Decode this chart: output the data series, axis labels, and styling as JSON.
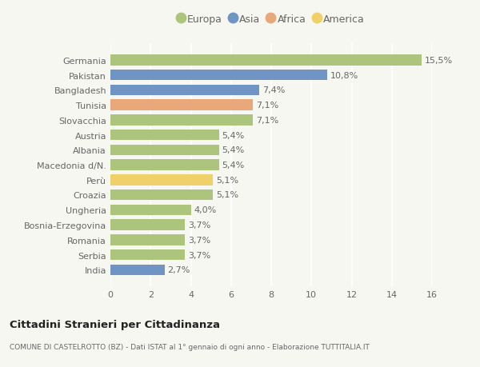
{
  "categories": [
    "Germania",
    "Pakistan",
    "Bangladesh",
    "Tunisia",
    "Slovacchia",
    "Austria",
    "Albania",
    "Macedonia d/N.",
    "Perù",
    "Croazia",
    "Ungheria",
    "Bosnia-Erzegovina",
    "Romania",
    "Serbia",
    "India"
  ],
  "values": [
    15.5,
    10.8,
    7.4,
    7.1,
    7.1,
    5.4,
    5.4,
    5.4,
    5.1,
    5.1,
    4.0,
    3.7,
    3.7,
    3.7,
    2.7
  ],
  "labels": [
    "15,5%",
    "10,8%",
    "7,4%",
    "7,1%",
    "7,1%",
    "5,4%",
    "5,4%",
    "5,4%",
    "5,1%",
    "5,1%",
    "4,0%",
    "3,7%",
    "3,7%",
    "3,7%",
    "2,7%"
  ],
  "continents": [
    "Europa",
    "Asia",
    "Asia",
    "Africa",
    "Europa",
    "Europa",
    "Europa",
    "Europa",
    "America",
    "Europa",
    "Europa",
    "Europa",
    "Europa",
    "Europa",
    "Asia"
  ],
  "colors": {
    "Europa": "#adc47d",
    "Asia": "#7094c4",
    "Africa": "#e8a87a",
    "America": "#f0d068"
  },
  "legend_order": [
    "Europa",
    "Asia",
    "Africa",
    "America"
  ],
  "background_color": "#f7f7f2",
  "xlim": [
    0,
    16
  ],
  "xticks": [
    0,
    2,
    4,
    6,
    8,
    10,
    12,
    14,
    16
  ],
  "title": "Cittadini Stranieri per Cittadinanza",
  "subtitle": "COMUNE DI CASTELROTTO (BZ) - Dati ISTAT al 1° gennaio di ogni anno - Elaborazione TUTTITALIA.IT",
  "grid_color": "#ffffff",
  "label_fontsize": 8.0,
  "tick_fontsize": 8.0,
  "bar_height": 0.72,
  "text_color": "#666666"
}
